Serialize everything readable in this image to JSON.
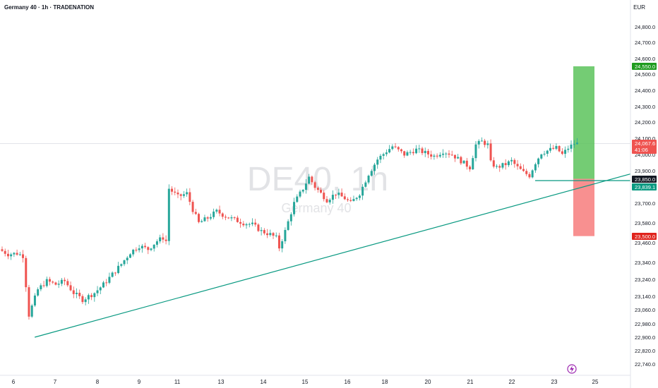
{
  "header": {
    "title": "Germany 40 · 1h · TRADENATION",
    "currency": "EUR"
  },
  "watermark": {
    "symbol": "DE40, 1h",
    "name": "Germany 40"
  },
  "colors": {
    "up": "#26a69a",
    "down": "#ef5350",
    "trendline": "#089981",
    "target_zone": "#5cc35c",
    "stop_zone": "#f77c7c",
    "target_tag": "#1e9b1e",
    "stop_tag": "#e0231c"
  },
  "chart_data": {
    "type": "candlestick",
    "title": "Germany 40 · 1h · TRADENATION",
    "ylim": [
      22690,
      24900
    ],
    "y_ticks": [
      24800,
      24700,
      24600,
      24500,
      24400,
      24300,
      24200,
      24100,
      24000,
      23900,
      23800,
      23700,
      23580,
      23460,
      23340,
      23240,
      23140,
      23060,
      22980,
      22900,
      22820,
      22740
    ],
    "y_tick_labels": [
      "24,800.0",
      "24,700.0",
      "24,600.0",
      "24,500.0",
      "24,400.0",
      "24,300.0",
      "24,200.0",
      "24,100.0",
      "24,000.0",
      "23,900.0",
      "23,800.0",
      "23,700.0",
      "23,580.0",
      "23,460.0",
      "23,340.0",
      "23,240.0",
      "23,140.0",
      "23,060.0",
      "22,980.0",
      "22,900.0",
      "22,820.0",
      "22,740.0"
    ],
    "x_ticks": [
      "6",
      "7",
      "8",
      "9",
      "11",
      "13",
      "14",
      "15",
      "16",
      "18",
      "20",
      "21",
      "22",
      "23",
      "25"
    ],
    "price_path": [
      [
        0,
        23420
      ],
      [
        3,
        23390
      ],
      [
        6,
        23395
      ],
      [
        8,
        23380
      ],
      [
        10,
        23030
      ],
      [
        13,
        23180
      ],
      [
        16,
        23230
      ],
      [
        19,
        23210
      ],
      [
        22,
        23230
      ],
      [
        25,
        23160
      ],
      [
        28,
        23120
      ],
      [
        32,
        23160
      ],
      [
        35,
        23210
      ],
      [
        38,
        23270
      ],
      [
        41,
        23330
      ],
      [
        44,
        23400
      ],
      [
        47,
        23440
      ],
      [
        50,
        23420
      ],
      [
        53,
        23470
      ],
      [
        55,
        23490
      ],
      [
        56,
        23470
      ],
      [
        57,
        23790
      ],
      [
        60,
        23740
      ],
      [
        63,
        23760
      ],
      [
        65,
        23660
      ],
      [
        67,
        23580
      ],
      [
        70,
        23610
      ],
      [
        73,
        23650
      ],
      [
        76,
        23620
      ],
      [
        79,
        23600
      ],
      [
        82,
        23580
      ],
      [
        85,
        23570
      ],
      [
        88,
        23530
      ],
      [
        91,
        23510
      ],
      [
        93,
        23490
      ],
      [
        94,
        23430
      ],
      [
        96,
        23530
      ],
      [
        99,
        23700
      ],
      [
        102,
        23790
      ],
      [
        104,
        23860
      ],
      [
        106,
        23800
      ],
      [
        108,
        23760
      ],
      [
        110,
        23720
      ],
      [
        113,
        23760
      ],
      [
        116,
        23730
      ],
      [
        118,
        23700
      ],
      [
        121,
        23760
      ],
      [
        124,
        23880
      ],
      [
        127,
        23970
      ],
      [
        130,
        24020
      ],
      [
        132,
        24050
      ],
      [
        136,
        24000
      ],
      [
        140,
        24030
      ],
      [
        143,
        24010
      ],
      [
        146,
        23990
      ],
      [
        149,
        24020
      ],
      [
        152,
        24000
      ],
      [
        155,
        23960
      ],
      [
        158,
        23920
      ],
      [
        160,
        24060
      ],
      [
        162,
        24080
      ],
      [
        164,
        24060
      ],
      [
        165,
        23950
      ],
      [
        167,
        23920
      ],
      [
        170,
        23940
      ],
      [
        172,
        23960
      ],
      [
        174,
        23920
      ],
      [
        176,
        23890
      ],
      [
        178,
        23870
      ],
      [
        180,
        23950
      ],
      [
        182,
        24010
      ],
      [
        185,
        24030
      ],
      [
        187,
        24040
      ],
      [
        189,
        24000
      ],
      [
        191,
        24040
      ],
      [
        193,
        24067
      ]
    ],
    "trendline": [
      [
        10,
        22900
      ],
      [
        205,
        23880
      ]
    ],
    "horizontal_line": {
      "y": 23856
    },
    "position": {
      "entry": 23850.0,
      "target": 24550.0,
      "stop": 23500.0
    },
    "price_tags": {
      "target": "24,550.0",
      "current": "24,067.6",
      "countdown": "41:06",
      "entry": "23,850.0",
      "line": "23,839.1",
      "stop": "23,500.0"
    }
  }
}
